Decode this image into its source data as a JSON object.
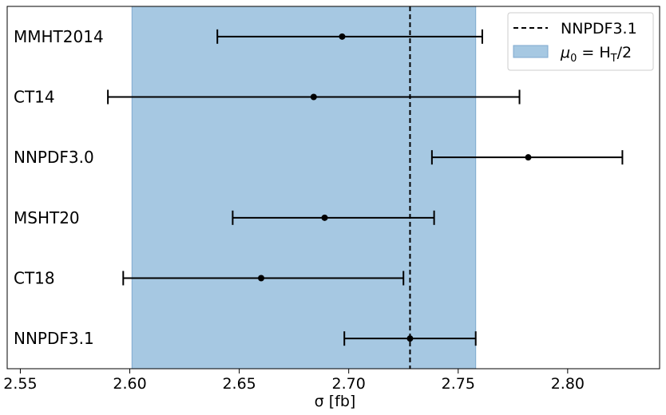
{
  "chart_data": {
    "type": "errorbar",
    "title": "",
    "xlabel": "σ [fb]",
    "ylabel": "",
    "xlim": [
      2.544,
      2.842
    ],
    "xticks": [
      2.55,
      2.6,
      2.65,
      2.7,
      2.75,
      2.8
    ],
    "xtick_labels": [
      "2.55",
      "2.60",
      "2.65",
      "2.70",
      "2.75",
      "2.80"
    ],
    "grid": false,
    "legend_position": "top-right",
    "categories": [
      "MMHT2014",
      "CT14",
      "NNPDF3.0",
      "MSHT20",
      "CT18",
      "NNPDF3.1"
    ],
    "points": [
      {
        "label": "MMHT2014",
        "value": 2.697,
        "low": 2.64,
        "high": 2.761
      },
      {
        "label": "CT14",
        "value": 2.684,
        "low": 2.59,
        "high": 2.778
      },
      {
        "label": "NNPDF3.0",
        "value": 2.782,
        "low": 2.738,
        "high": 2.825
      },
      {
        "label": "MSHT20",
        "value": 2.689,
        "low": 2.647,
        "high": 2.739
      },
      {
        "label": "CT18",
        "value": 2.66,
        "low": 2.597,
        "high": 2.725
      },
      {
        "label": "NNPDF3.1",
        "value": 2.728,
        "low": 2.698,
        "high": 2.758
      }
    ],
    "reference_line": {
      "name": "NNPDF3.1",
      "x": 2.728,
      "style": "dashed"
    },
    "band": {
      "name_prefix": "μ",
      "name_sub": "0",
      "name_mid": " = H",
      "name_sub2": "T",
      "name_suffix": "/2",
      "x_range": [
        2.601,
        2.758
      ],
      "color": "#a6c8e2"
    },
    "colors": {
      "points": "#000000",
      "band": "#a6c8e2",
      "band_edge": "#7fa9cf"
    }
  }
}
